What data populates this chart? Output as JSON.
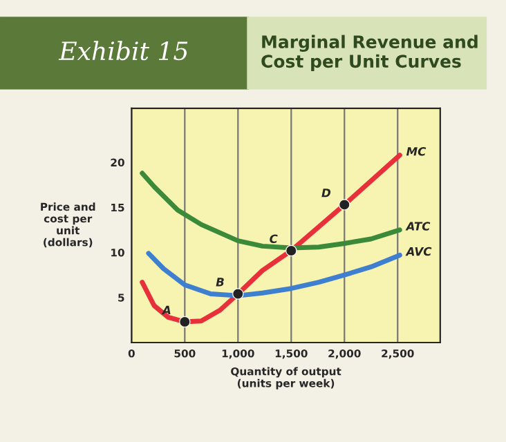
{
  "chart_data": {
    "type": "line",
    "subtitle": "Exhibit 15",
    "title": "Marginal Revenue and Cost per Unit Curves",
    "xlabel": "Quantity of output\n(units per week)",
    "ylabel": "Price and\ncost per\nunit\n(dollars)",
    "xlim": [
      0,
      2900
    ],
    "ylim": [
      0,
      26
    ],
    "xticks": [
      0,
      500,
      {
        "value": 1000,
        "label": "1,000"
      },
      {
        "value": 1500,
        "label": "1,500"
      },
      {
        "value": 2000,
        "label": "2,000"
      },
      {
        "value": 2500,
        "label": "2,500"
      }
    ],
    "yticks": [
      5,
      10,
      15,
      20
    ],
    "grid": "x",
    "marker": "none",
    "line_style": "solid",
    "series": [
      {
        "name": "MC",
        "color": "#e8303a",
        "x": [
          100,
          212,
          345,
          500,
          655,
          832,
          1000,
          1230,
          1500,
          2000,
          2520
        ],
        "values": [
          6.7,
          4.1,
          2.8,
          2.3,
          2.4,
          3.6,
          5.4,
          8.0,
          10.2,
          15.3,
          20.8
        ]
      },
      {
        "name": "ATC",
        "color": "#3a8a3a",
        "x": [
          100,
          212,
          434,
          655,
          1000,
          1230,
          1500,
          1760,
          2000,
          2250,
          2520
        ],
        "values": [
          18.8,
          17.3,
          14.7,
          13.1,
          11.3,
          10.7,
          10.5,
          10.6,
          11.0,
          11.5,
          12.5
        ]
      },
      {
        "name": "AVC",
        "color": "#3f7fd0",
        "x": [
          160,
          300,
          500,
          743,
          1000,
          1230,
          1500,
          1760,
          2000,
          2250,
          2520
        ],
        "values": [
          9.9,
          8.2,
          6.4,
          5.4,
          5.2,
          5.5,
          6.0,
          6.7,
          7.5,
          8.4,
          9.7
        ]
      },
      {
        "type": "scatter",
        "color": "#222222",
        "marker": "circle",
        "x": [
          500,
          1000,
          1500,
          2000
        ],
        "values": [
          2.3,
          5.4,
          10.2,
          15.3
        ]
      }
    ],
    "annotations": [
      {
        "text": "A",
        "x": 500,
        "y": 2.3
      },
      {
        "text": "B",
        "x": 1000,
        "y": 5.4
      },
      {
        "text": "C",
        "x": 1500,
        "y": 10.2
      },
      {
        "text": "D",
        "x": 2000,
        "y": 15.3
      }
    ]
  }
}
